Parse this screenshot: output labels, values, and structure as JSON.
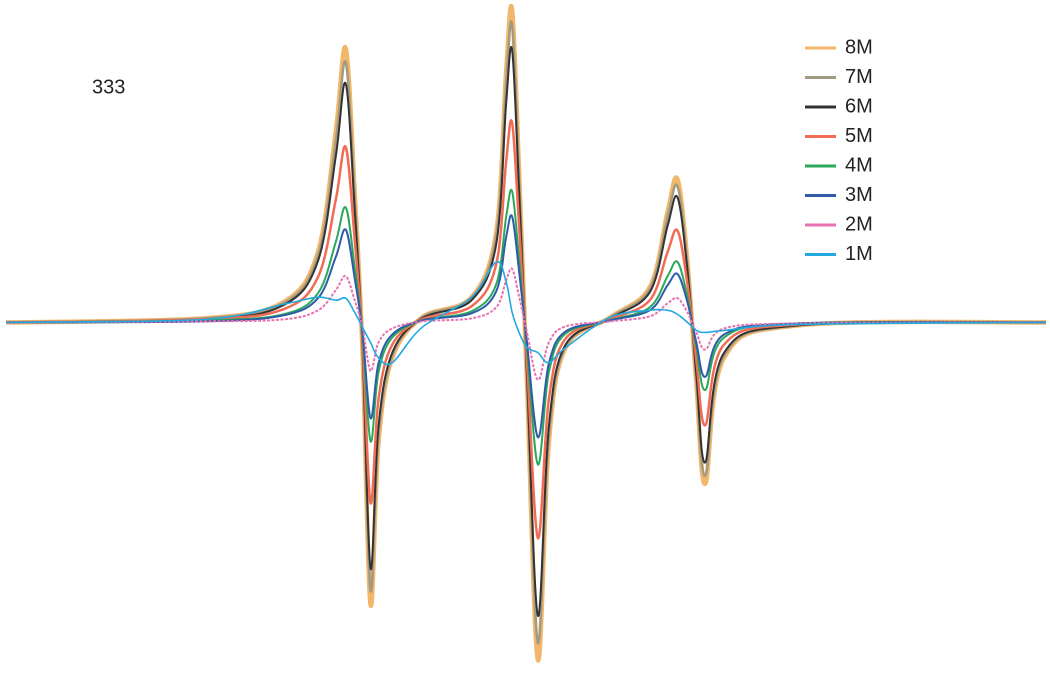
{
  "chart_data": {
    "type": "line",
    "title": "333",
    "x": [
      0,
      200,
      280,
      315,
      333,
      343,
      352,
      360,
      368,
      376,
      390,
      420,
      470,
      495,
      505,
      511,
      518,
      526,
      537,
      548,
      565,
      610,
      650,
      668,
      678,
      688,
      697,
      706,
      725,
      800,
      1050
    ],
    "series": [
      {
        "name": "8M",
        "color": "#f2b76a",
        "values": [
          0,
          4,
          20,
          70,
          190,
          272,
          130,
          -30,
          -280,
          -120,
          -35,
          5,
          25,
          90,
          250,
          310,
          150,
          -60,
          -335,
          -120,
          -25,
          5,
          35,
          110,
          142,
          60,
          -60,
          -160,
          -35,
          -3,
          0
        ]
      },
      {
        "name": "7M",
        "color": "#a39a82",
        "values": [
          0,
          4,
          19,
          66,
          180,
          258,
          124,
          -28,
          -266,
          -114,
          -33,
          5,
          24,
          86,
          238,
          295,
          143,
          -57,
          -318,
          -114,
          -24,
          5,
          33,
          105,
          135,
          57,
          -57,
          -152,
          -33,
          -3,
          0
        ]
      },
      {
        "name": "6M",
        "color": "#333333",
        "values": [
          0,
          3,
          17,
          61,
          165,
          237,
          113,
          -26,
          -244,
          -104,
          -30,
          4,
          22,
          78,
          218,
          270,
          131,
          -52,
          -291,
          -104,
          -22,
          4,
          30,
          96,
          124,
          52,
          -52,
          -139,
          -30,
          -3,
          0
        ]
      },
      {
        "name": "5M",
        "color": "#f26b55",
        "values": [
          0,
          3,
          13,
          45,
          122,
          174,
          83,
          -19,
          -179,
          -77,
          -22,
          3,
          16,
          58,
          160,
          198,
          96,
          -38,
          -214,
          -77,
          -16,
          3,
          22,
          70,
          91,
          38,
          -38,
          -102,
          -22,
          -2,
          0
        ]
      },
      {
        "name": "4M",
        "color": "#2aa85a",
        "values": [
          0,
          2,
          8,
          29,
          80,
          114,
          55,
          -13,
          -118,
          -50,
          -15,
          2,
          11,
          38,
          105,
          130,
          63,
          -25,
          -141,
          -50,
          -11,
          2,
          15,
          46,
          60,
          25,
          -25,
          -67,
          -15,
          -1,
          0
        ]
      },
      {
        "name": "3M",
        "color": "#2f5ba8",
        "values": [
          0,
          1,
          7,
          24,
          65,
          92,
          44,
          -10,
          -95,
          -41,
          -12,
          2,
          9,
          31,
          85,
          105,
          51,
          -20,
          -114,
          -41,
          -9,
          2,
          12,
          37,
          48,
          20,
          -20,
          -54,
          -12,
          -1,
          0
        ]
      },
      {
        "name": "2M",
        "color": "#e872b0",
        "values": [
          0,
          1,
          3,
          12,
          32,
          46,
          22,
          -5,
          -48,
          -20,
          -6,
          1,
          4,
          15,
          42,
          53,
          26,
          -10,
          -57,
          -20,
          -4,
          1,
          6,
          19,
          24,
          10,
          -10,
          -27,
          -6,
          -1,
          0
        ]
      },
      {
        "name": "1M",
        "color": "#22a9e0",
        "values": [
          0,
          3,
          18,
          25,
          22,
          24,
          10,
          -5,
          -20,
          -35,
          -40,
          -5,
          25,
          60,
          40,
          10,
          -10,
          -25,
          -30,
          -40,
          -25,
          5,
          12,
          12,
          8,
          0,
          -8,
          -10,
          -8,
          -2,
          0
        ]
      }
    ]
  }
}
